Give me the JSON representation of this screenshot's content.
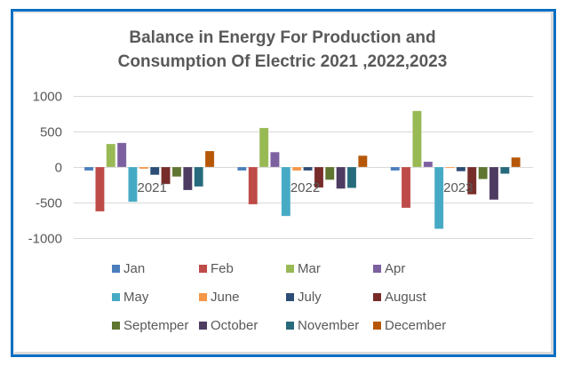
{
  "chart_data": {
    "type": "bar",
    "title": "Balance in Energy For Production and Consumption Of Electric 2021 ,2022,2023",
    "title_lines": [
      "Balance in Energy For Production  and",
      "Consumption  Of Electric 2021 ,2022,2023"
    ],
    "xlabel": "",
    "ylabel": "",
    "ylim": [
      -1000,
      1000
    ],
    "yticks": [
      1000,
      500,
      0,
      -500,
      -1000
    ],
    "ytick_labels": [
      "1000",
      "500",
      "0",
      "-500",
      "-1000"
    ],
    "grid": true,
    "legend_position": "bottom",
    "categories": [
      "2021",
      "2022",
      "2023"
    ],
    "series": [
      {
        "name": "Jan",
        "color": "#4a7ebb",
        "values": [
          -50,
          -50,
          -50
        ]
      },
      {
        "name": "Feb",
        "color": "#be4b48",
        "values": [
          -625,
          -525,
          -575
        ]
      },
      {
        "name": "Mar",
        "color": "#98b954",
        "values": [
          325,
          550,
          790
        ]
      },
      {
        "name": "Apr",
        "color": "#7d60a0",
        "values": [
          340,
          210,
          75
        ]
      },
      {
        "name": "May",
        "color": "#46aac5",
        "values": [
          -490,
          -690,
          -870
        ]
      },
      {
        "name": "June",
        "color": "#f79646",
        "values": [
          -25,
          -50,
          -15
        ]
      },
      {
        "name": "July",
        "color": "#2c4d75",
        "values": [
          -110,
          -50,
          -60
        ]
      },
      {
        "name": "August",
        "color": "#772c2a",
        "values": [
          -240,
          -290,
          -385
        ]
      },
      {
        "name": "Septemper",
        "color": "#5f7530",
        "values": [
          -135,
          -180,
          -170
        ]
      },
      {
        "name": "October",
        "color": "#4d3b62",
        "values": [
          -325,
          -305,
          -460
        ]
      },
      {
        "name": "November",
        "color": "#276a7c",
        "values": [
          -275,
          -295,
          -95
        ]
      },
      {
        "name": "December",
        "color": "#b65708",
        "values": [
          225,
          160,
          135
        ]
      }
    ]
  }
}
